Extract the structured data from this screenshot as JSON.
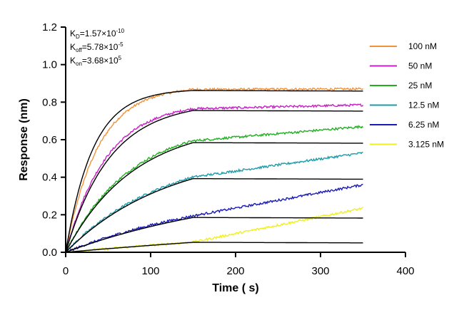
{
  "chart_data": {
    "type": "line",
    "title": "",
    "xlabel": "Time ( s)",
    "ylabel": "Response (nm)",
    "xlim": [
      0,
      400
    ],
    "ylim": [
      0,
      1.2
    ],
    "xticks": [
      "0",
      "100",
      "200",
      "300",
      "400"
    ],
    "yticks": [
      "0.0",
      "0.2",
      "0.4",
      "0.6",
      "0.8",
      "1.0",
      "1.2"
    ],
    "grid": false,
    "legend_position": "right",
    "association_end": 150,
    "time_end": 350,
    "kinetics": {
      "kd": {
        "prefix": "K",
        "sub": "D",
        "eq": "=1.57×10",
        "exp": "-10"
      },
      "koff": {
        "prefix": "K",
        "sub": "off",
        "eq": "=5.78×10",
        "exp": "-5"
      },
      "kon": {
        "prefix": "K",
        "sub": "on",
        "eq": "=3.68×10",
        "exp": "5"
      }
    },
    "fit_color": "#000000",
    "series": [
      {
        "name": "100 nM",
        "color": "#F0923A",
        "fit_plateau": 0.87,
        "fit_tau": 32,
        "data_plateau": 0.885,
        "data_tau": 38,
        "data_end": 0.87
      },
      {
        "name": "50 nM",
        "color": "#C81FC8",
        "fit_plateau": 0.8,
        "fit_tau": 52,
        "data_plateau": 0.8,
        "data_tau": 48,
        "data_end": 0.785
      },
      {
        "name": "25 nM",
        "color": "#20B020",
        "fit_plateau": 0.69,
        "fit_tau": 80,
        "data_plateau": 0.69,
        "data_tau": 76,
        "data_end": 0.67
      },
      {
        "name": "12.5 nM",
        "color": "#1E9BA8",
        "fit_plateau": 0.55,
        "fit_tau": 120,
        "data_plateau": 0.55,
        "data_tau": 115,
        "data_end": 0.53
      },
      {
        "name": "6.25 nM",
        "color": "#1A1AB8",
        "fit_plateau": 0.375,
        "fit_tau": 220,
        "data_plateau": 0.38,
        "data_tau": 210,
        "data_end": 0.36
      },
      {
        "name": "3.125 nM",
        "color": "#F0F020",
        "fit_plateau": 0.24,
        "fit_tau": 600,
        "data_plateau": 0.245,
        "data_tau": 600,
        "data_end": 0.235
      }
    ]
  }
}
